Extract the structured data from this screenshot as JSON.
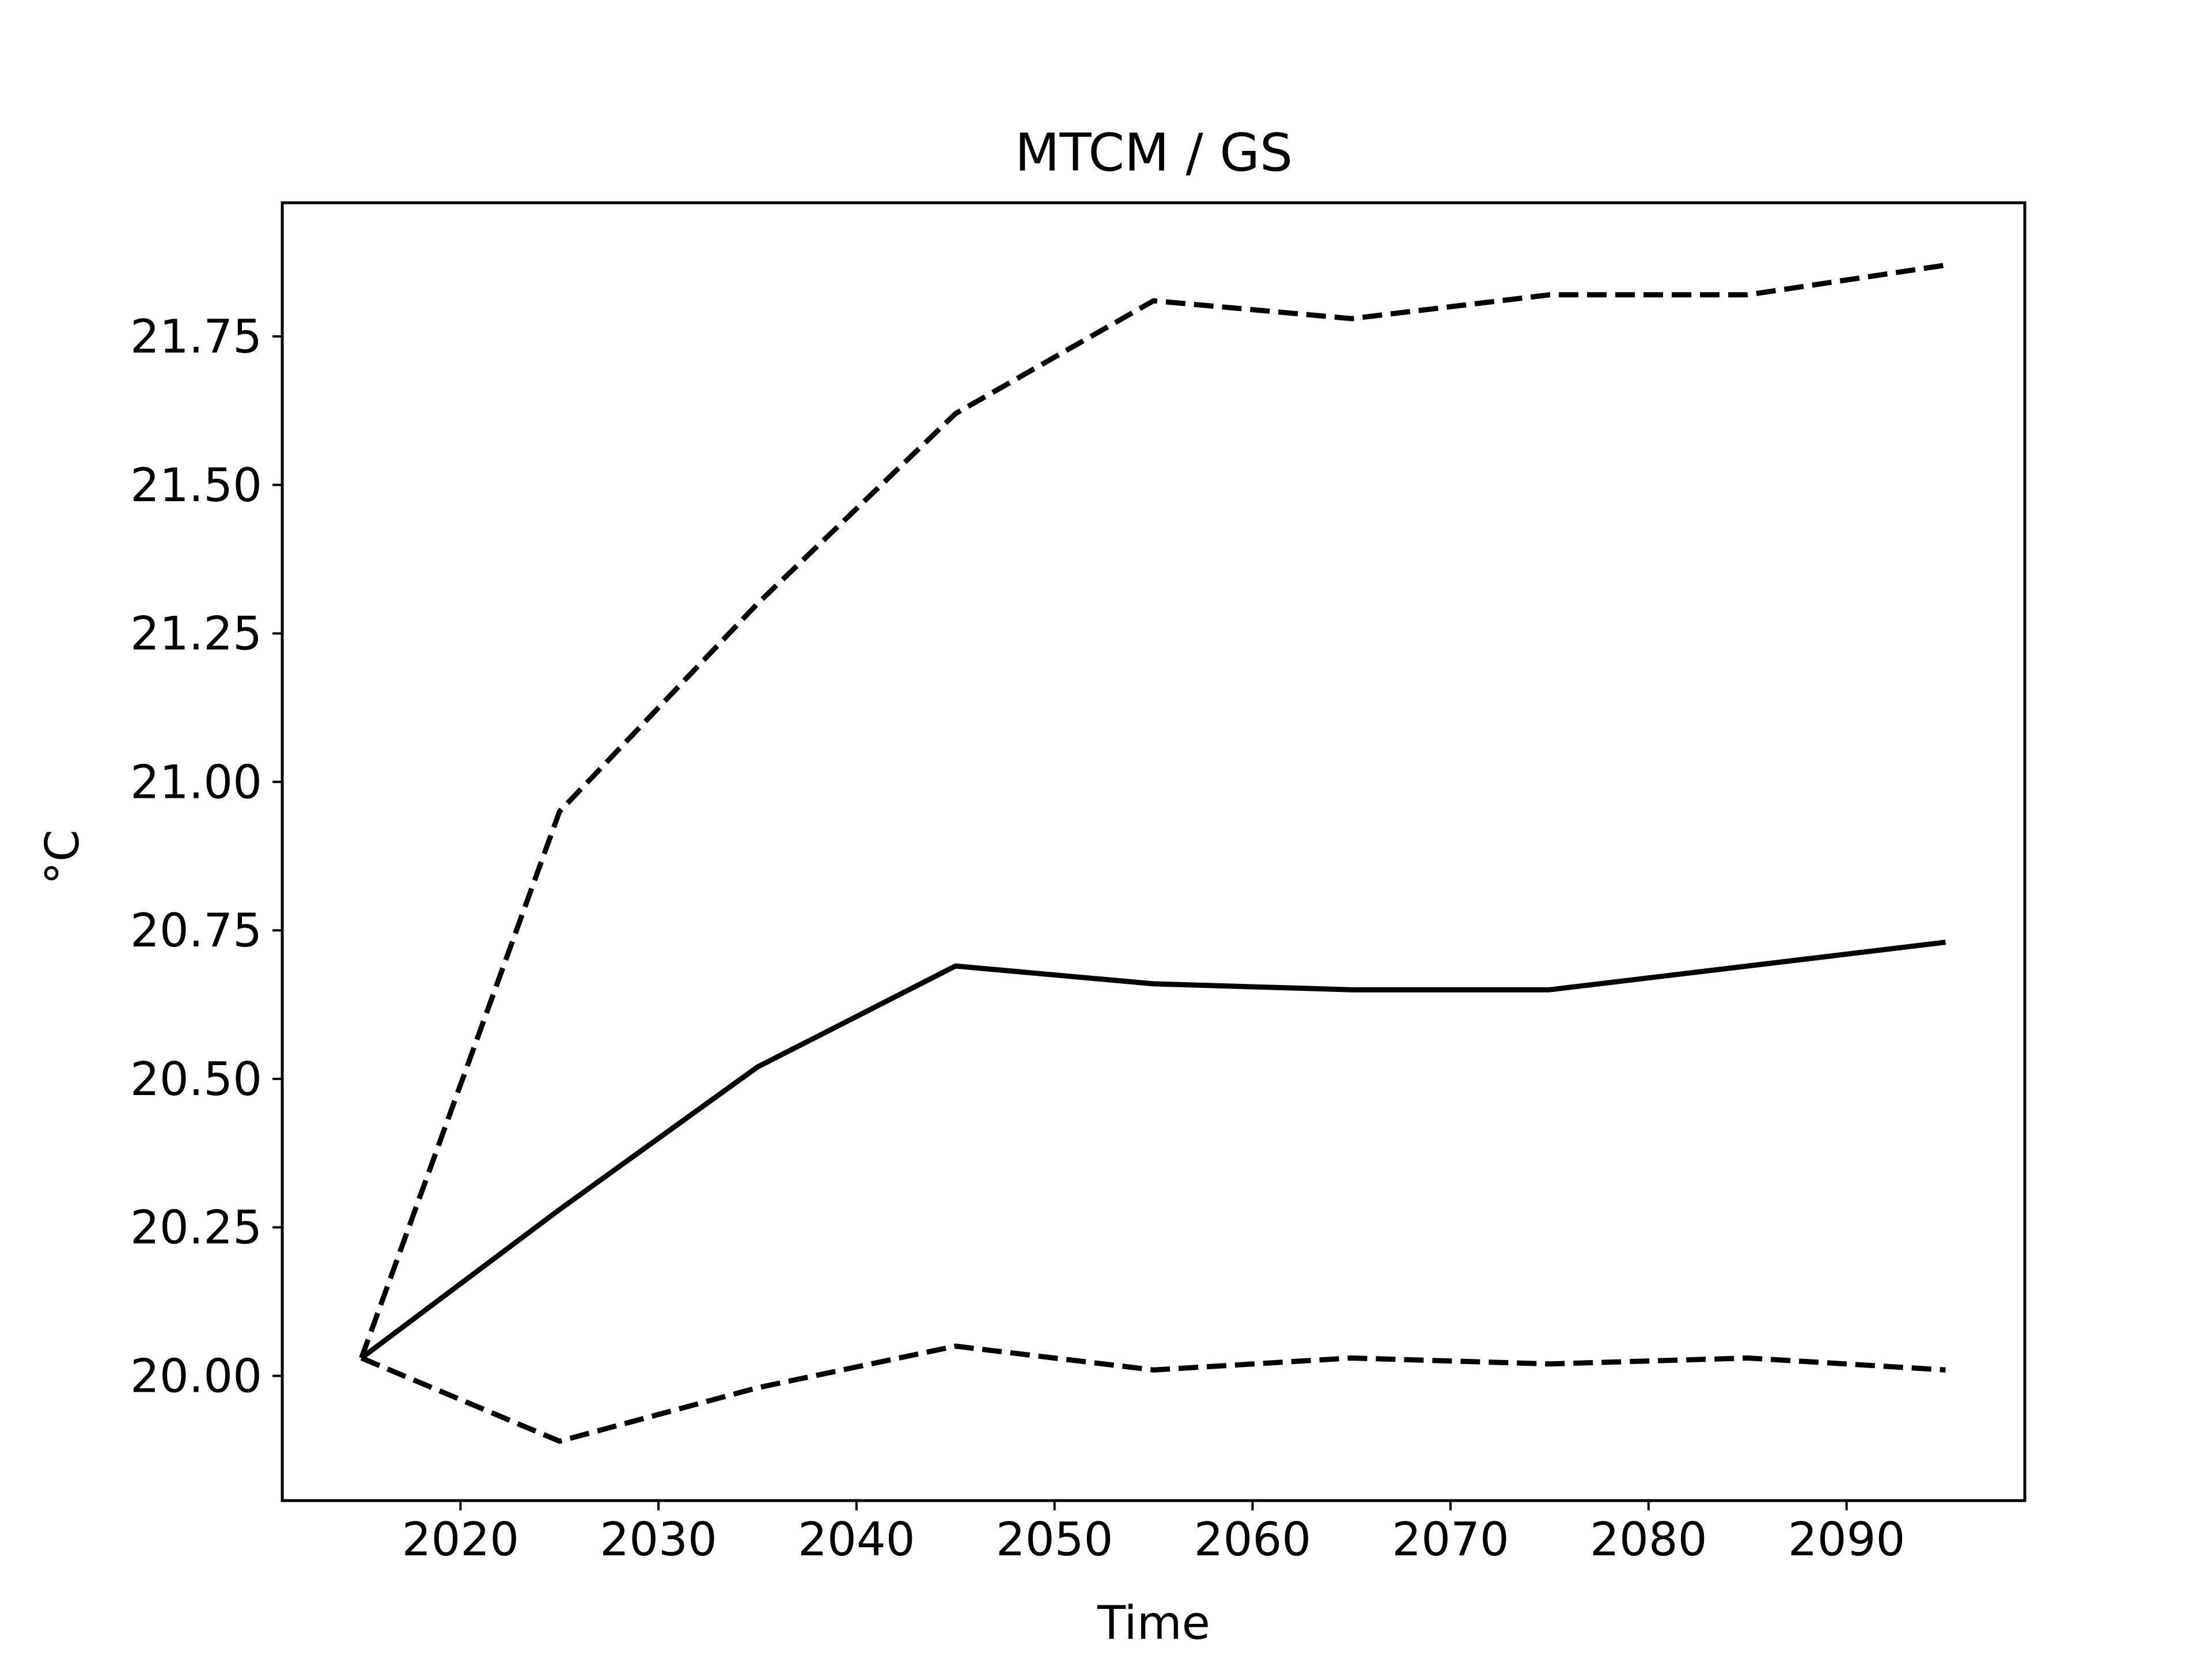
{
  "chart_data": {
    "type": "line",
    "title": "MTCM / GS",
    "xlabel": "Time",
    "ylabel": "°C",
    "xlim": [
      2011,
      2099
    ],
    "ylim": [
      19.79,
      21.975
    ],
    "x_ticks": [
      2020,
      2030,
      2040,
      2050,
      2060,
      2070,
      2080,
      2090
    ],
    "x_tick_labels": [
      "2020",
      "2030",
      "2040",
      "2050",
      "2060",
      "2070",
      "2080",
      "2090"
    ],
    "y_ticks": [
      20.0,
      20.25,
      20.5,
      20.75,
      21.0,
      21.25,
      21.5,
      21.75
    ],
    "y_tick_labels": [
      "20.00",
      "20.25",
      "20.50",
      "20.75",
      "21.00",
      "21.25",
      "21.50",
      "21.75"
    ],
    "grid": false,
    "legend": "none",
    "x": [
      2015,
      2025,
      2035,
      2045,
      2055,
      2065,
      2075,
      2085,
      2095
    ],
    "series": [
      {
        "style": "dashed",
        "color": "#000000",
        "values": [
          20.03,
          20.95,
          21.3,
          21.62,
          21.81,
          21.78,
          21.82,
          21.82,
          21.87
        ]
      },
      {
        "style": "solid",
        "color": "#000000",
        "values": [
          20.03,
          20.28,
          20.52,
          20.69,
          20.66,
          20.65,
          20.65,
          20.69,
          20.73
        ]
      },
      {
        "style": "dashed",
        "color": "#000000",
        "values": [
          20.03,
          19.89,
          19.98,
          20.05,
          20.01,
          20.03,
          20.02,
          20.03,
          20.01
        ]
      }
    ]
  }
}
